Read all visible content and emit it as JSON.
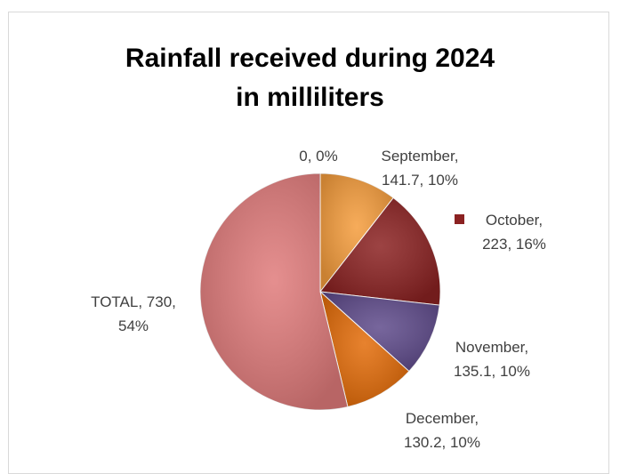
{
  "chart_data": {
    "type": "pie",
    "title_lines": [
      "Rainfall received during 2024",
      "in milliliters"
    ],
    "slices": [
      {
        "label": "0",
        "value": 0,
        "percent": "0%",
        "color": "#f79646"
      },
      {
        "label": "September",
        "value": 141.7,
        "percent": "10%",
        "color": "#f59d3d"
      },
      {
        "label": "October",
        "value": 223,
        "percent": "16%",
        "color": "#8b2222"
      },
      {
        "label": "November",
        "value": 135.1,
        "percent": "10%",
        "color": "#5f4b8b"
      },
      {
        "label": "December",
        "value": 130.2,
        "percent": "10%",
        "color": "#e36c09"
      },
      {
        "label": "TOTAL",
        "value": 730,
        "percent": "54%",
        "color": "#e07b7b"
      }
    ],
    "labels_text": [
      [
        "0, 0%"
      ],
      [
        "September,",
        "141.7, 10%"
      ],
      [
        "October,",
        "223, 16%"
      ],
      [
        "November,",
        "135.1, 10%"
      ],
      [
        "December,",
        "130.2, 10%"
      ],
      [
        "TOTAL, 730,",
        "54%"
      ]
    ]
  }
}
